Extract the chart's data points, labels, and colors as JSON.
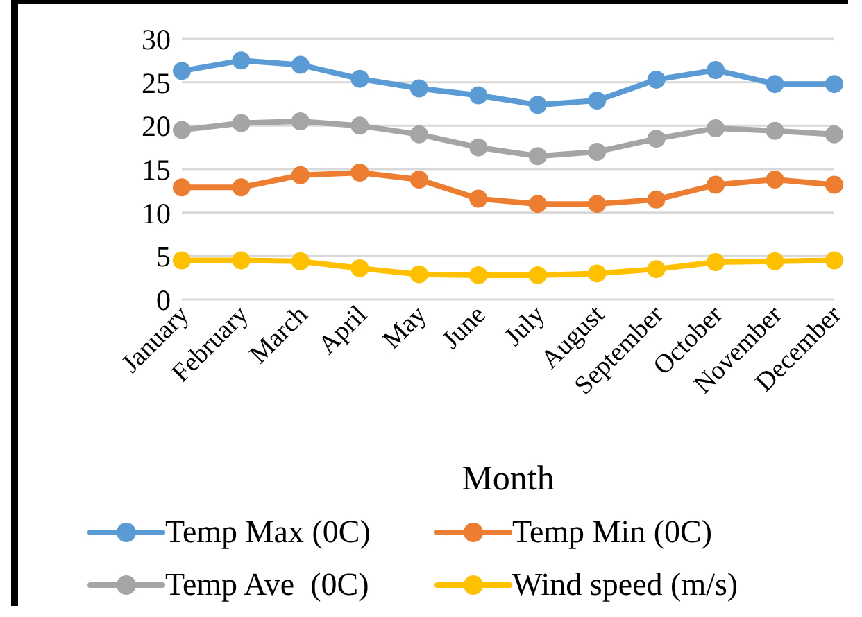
{
  "chart_data": {
    "type": "line",
    "xlabel": "Month",
    "categories": [
      "January",
      "February",
      "March",
      "April",
      "May",
      "June",
      "July",
      "August",
      "September",
      "October",
      "November",
      "December"
    ],
    "series": [
      {
        "name": "Temp Max (0C)",
        "color": "#5b9bd5",
        "values": [
          26.3,
          27.5,
          27.0,
          25.4,
          24.3,
          23.5,
          22.4,
          22.9,
          25.3,
          26.4,
          24.8,
          24.8
        ]
      },
      {
        "name": "Temp Min (0C)",
        "color": "#ed7d31",
        "values": [
          12.9,
          12.9,
          14.3,
          14.6,
          13.8,
          11.6,
          11.0,
          11.0,
          11.5,
          13.2,
          13.8,
          13.2
        ]
      },
      {
        "name": "Temp Ave  (0C)",
        "color": "#a5a5a5",
        "values": [
          19.5,
          20.3,
          20.5,
          20.0,
          19.0,
          17.5,
          16.5,
          17.0,
          18.5,
          19.7,
          19.4,
          19.0
        ]
      },
      {
        "name": "Wind speed (m/s)",
        "color": "#ffc000",
        "values": [
          4.5,
          4.5,
          4.4,
          3.6,
          2.9,
          2.8,
          2.8,
          3.0,
          3.5,
          4.3,
          4.4,
          4.5
        ]
      }
    ],
    "ylim": [
      0,
      30
    ],
    "yticks": [
      0,
      5,
      10,
      15,
      20,
      25,
      30
    ],
    "grid": "y",
    "legend": "bottom",
    "marker": "circle",
    "line_style": "solid"
  }
}
